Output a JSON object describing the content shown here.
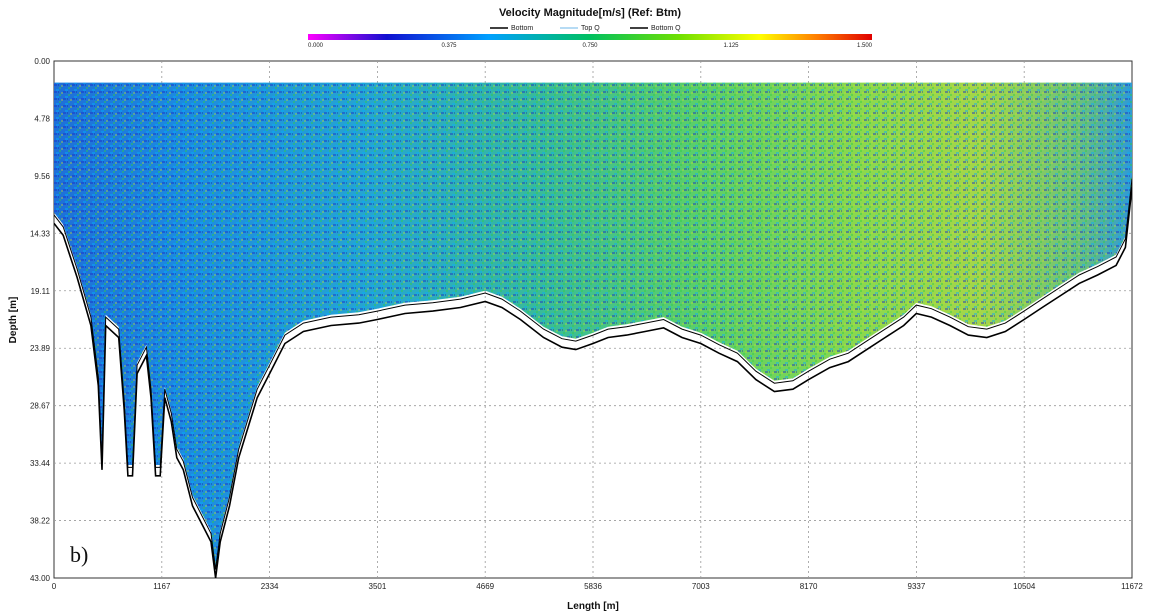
{
  "chart_data": {
    "type": "heatmap",
    "title": "Velocity Magnitude[m/s] (Ref: Btm)",
    "xlabel": "Length [m]",
    "ylabel": "Depth [m]",
    "panel_label": "b)",
    "xlim": [
      0,
      11672
    ],
    "ylim": [
      0,
      43.0
    ],
    "y_inverted": true,
    "grid": true,
    "x_ticks": [
      "0",
      "1167",
      "2334",
      "3501",
      "4669",
      "5836",
      "7003",
      "8170",
      "9337",
      "10504",
      "11672"
    ],
    "y_ticks": [
      "0.00",
      "4.78",
      "9.56",
      "14.33",
      "19.11",
      "23.89",
      "28.67",
      "33.44",
      "38.22",
      "43.00"
    ],
    "legend": {
      "placement": "top-center",
      "entries": [
        {
          "name": "Bottom",
          "color": "#000000"
        },
        {
          "name": "Top Q",
          "color": "#9ecff0"
        },
        {
          "name": "Bottom Q",
          "color": "#000000"
        }
      ]
    },
    "colorbar": {
      "placement": "top-center",
      "min": 0.0,
      "max": 1.5,
      "tick_labels": [
        "0.000",
        "0.375",
        "0.750",
        "1.125",
        "1.500"
      ],
      "colors": [
        "#ff00ff",
        "#1010d0",
        "#00a0ff",
        "#00c060",
        "#70e000",
        "#ffff00",
        "#ff8000",
        "#e00000"
      ]
    },
    "top_q_depth": 1.8,
    "bottom_profile": {
      "x": [
        0,
        100,
        250,
        400,
        480,
        520,
        560,
        700,
        760,
        800,
        850,
        900,
        1000,
        1050,
        1100,
        1150,
        1200,
        1270,
        1330,
        1400,
        1500,
        1600,
        1700,
        1750,
        1800,
        1900,
        2000,
        2200,
        2334,
        2500,
        2700,
        3000,
        3300,
        3501,
        3800,
        4100,
        4400,
        4669,
        4850,
        5050,
        5300,
        5500,
        5650,
        5836,
        6000,
        6200,
        6400,
        6600,
        6800,
        7003,
        7200,
        7400,
        7600,
        7800,
        8000,
        8170,
        8400,
        8600,
        8800,
        9000,
        9200,
        9337,
        9500,
        9700,
        9900,
        10100,
        10300,
        10504,
        10700,
        10900,
        11100,
        11300,
        11500,
        11600,
        11672
      ],
      "depth": [
        13.5,
        14.5,
        18.0,
        22.0,
        27.0,
        34.0,
        22.0,
        23.0,
        29.0,
        34.5,
        34.5,
        26.0,
        24.5,
        28.0,
        34.5,
        34.5,
        28.0,
        30.0,
        33.0,
        34.0,
        37.0,
        38.5,
        40.0,
        43.0,
        40.0,
        37.0,
        33.0,
        28.0,
        26.0,
        23.5,
        22.5,
        22.0,
        21.8,
        21.5,
        21.0,
        20.8,
        20.5,
        20.0,
        20.5,
        21.5,
        23.0,
        23.8,
        24.0,
        23.5,
        23.0,
        22.8,
        22.5,
        22.2,
        23.0,
        23.5,
        24.3,
        25.0,
        26.5,
        27.5,
        27.3,
        26.5,
        25.5,
        25.0,
        24.0,
        23.0,
        22.0,
        21.0,
        21.3,
        22.0,
        22.8,
        23.0,
        22.5,
        21.5,
        20.5,
        19.5,
        18.5,
        17.8,
        17.0,
        15.5,
        10.5
      ]
    }
  }
}
